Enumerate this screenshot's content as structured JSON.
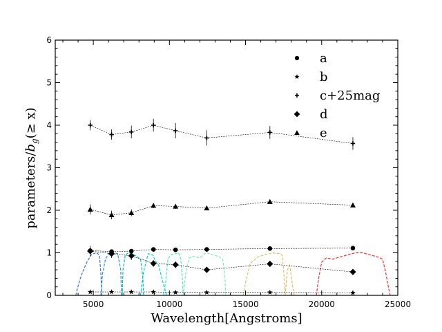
{
  "chart_data": {
    "type": "scatter",
    "xlabel": "Wavelength[Angstroms]",
    "ylabel_main": "parameters/",
    "ylabel_b": "b",
    "ylabel_sub": "g",
    "ylabel_tail": "(≥ x)",
    "xlim": [
      2500,
      25000
    ],
    "ylim": [
      0,
      6
    ],
    "x_ticks": [
      5000,
      10000,
      15000,
      20000,
      25000
    ],
    "x_tick_labels": [
      "5000",
      "10000",
      "15000",
      "20000",
      "25000"
    ],
    "y_ticks": [
      0,
      1,
      2,
      3,
      4,
      5,
      6
    ],
    "y_tick_labels": [
      "0",
      "1",
      "2",
      "3",
      "4",
      "5",
      "6"
    ],
    "legend_position": "top-right",
    "series": [
      {
        "name": "a",
        "marker": "circle",
        "x": [
          4800,
          6200,
          7500,
          8950,
          10400,
          12450,
          16600,
          22050
        ],
        "y": [
          1.05,
          1.03,
          1.04,
          1.08,
          1.07,
          1.08,
          1.1,
          1.11
        ],
        "yerr": [
          0.05,
          0.05,
          0.05,
          0.05,
          0.05,
          0.05,
          0.05,
          0.05
        ]
      },
      {
        "name": "b",
        "marker": "star",
        "x": [
          4800,
          6200,
          7500,
          8950,
          10400,
          12450,
          16600,
          22050
        ],
        "y": [
          0.08,
          0.08,
          0.08,
          0.08,
          0.07,
          0.07,
          0.07,
          0.06
        ],
        "yerr": [
          0.03,
          0.03,
          0.03,
          0.03,
          0.03,
          0.03,
          0.03,
          0.03
        ]
      },
      {
        "name": "c+25mag",
        "marker": "plus",
        "x": [
          4800,
          6200,
          7500,
          8950,
          10400,
          12450,
          16600,
          22050
        ],
        "y": [
          4.0,
          3.78,
          3.84,
          4.0,
          3.87,
          3.7,
          3.83,
          3.57
        ],
        "yerr": [
          0.12,
          0.12,
          0.15,
          0.15,
          0.18,
          0.18,
          0.15,
          0.15
        ]
      },
      {
        "name": "d",
        "marker": "diamond",
        "x": [
          4800,
          6200,
          7500,
          8950,
          10400,
          12450,
          16600,
          22050
        ],
        "y": [
          1.04,
          0.98,
          0.93,
          0.75,
          0.72,
          0.6,
          0.74,
          0.55
        ],
        "yerr": [
          0.12,
          0.1,
          0.1,
          0.08,
          0.08,
          0.06,
          0.06,
          0.06
        ]
      },
      {
        "name": "e",
        "marker": "triangle",
        "x": [
          4800,
          6200,
          7500,
          8950,
          10400,
          12450,
          16600,
          22050
        ],
        "y": [
          2.02,
          1.89,
          1.94,
          2.11,
          2.09,
          2.05,
          2.2,
          2.12
        ],
        "yerr": [
          0.12,
          0.1,
          0.08,
          0.06,
          0.06,
          0.05,
          0.05,
          0.05
        ]
      }
    ],
    "filter_curves": [
      {
        "name": "filter-1",
        "color": "#3a6fdc",
        "x": [
          3850,
          3950,
          4100,
          4300,
          4600,
          4900,
          5200,
          5400,
          5500,
          5550
        ],
        "y": [
          0.0,
          0.15,
          0.35,
          0.55,
          0.8,
          0.97,
          1.0,
          0.95,
          0.5,
          0.0
        ]
      },
      {
        "name": "filter-2",
        "color": "#1e90ff",
        "x": [
          5500,
          5600,
          5800,
          6000,
          6300,
          6600,
          6800,
          6850
        ],
        "y": [
          0.0,
          0.5,
          0.85,
          0.98,
          1.0,
          0.98,
          0.6,
          0.0
        ]
      },
      {
        "name": "filter-3",
        "color": "#00bfbf",
        "x": [
          6900,
          6950,
          7100,
          7300,
          7600,
          7900,
          8100,
          8250,
          8300
        ],
        "y": [
          0.0,
          0.6,
          0.95,
          1.0,
          0.97,
          0.9,
          0.85,
          0.45,
          0.0
        ]
      },
      {
        "name": "filter-4",
        "color": "#00d0d0",
        "x": [
          8100,
          8300,
          8600,
          8900,
          9100,
          9300,
          9500,
          9700,
          9800
        ],
        "y": [
          0.0,
          0.55,
          0.98,
          0.95,
          0.8,
          0.7,
          0.4,
          0.15,
          0.0
        ]
      },
      {
        "name": "filter-5",
        "color": "#48e8c0",
        "x": [
          9600,
          9750,
          9900,
          10100,
          10400,
          10600,
          10750,
          10850,
          10900
        ],
        "y": [
          0.0,
          0.3,
          0.85,
          0.95,
          0.98,
          1.0,
          0.85,
          0.4,
          0.0
        ]
      },
      {
        "name": "filter-6",
        "color": "#7cf0b0",
        "x": [
          10900,
          11100,
          11300,
          11600,
          12000,
          12400,
          12800,
          13200,
          13500,
          13650,
          13700
        ],
        "y": [
          0.0,
          0.6,
          0.88,
          0.92,
          0.88,
          1.0,
          0.96,
          0.92,
          0.85,
          0.4,
          0.0
        ]
      },
      {
        "name": "filter-7",
        "color": "#e0c070",
        "x": [
          14850,
          15000,
          15300,
          15800,
          16300,
          16800,
          17200,
          17400,
          17500,
          17600
        ],
        "y": [
          0.0,
          0.3,
          0.75,
          0.9,
          0.96,
          1.0,
          0.98,
          0.95,
          0.6,
          0.0
        ]
      },
      {
        "name": "filter-8",
        "color": "#e8b860",
        "x": [
          17600,
          17750,
          17900,
          18100,
          18200
        ],
        "y": [
          0.0,
          0.6,
          0.7,
          0.2,
          0.0
        ]
      },
      {
        "name": "filter-9",
        "color": "#ff2a2a",
        "x": [
          19650,
          19800,
          20000,
          20300,
          20700,
          21200,
          21700,
          22200,
          22700,
          23200,
          23700,
          24000,
          24200,
          24350,
          24500
        ],
        "y": [
          0.0,
          0.4,
          0.78,
          0.88,
          0.85,
          0.9,
          0.95,
          1.0,
          1.0,
          0.95,
          0.9,
          0.85,
          0.55,
          0.25,
          0.0
        ]
      }
    ]
  }
}
